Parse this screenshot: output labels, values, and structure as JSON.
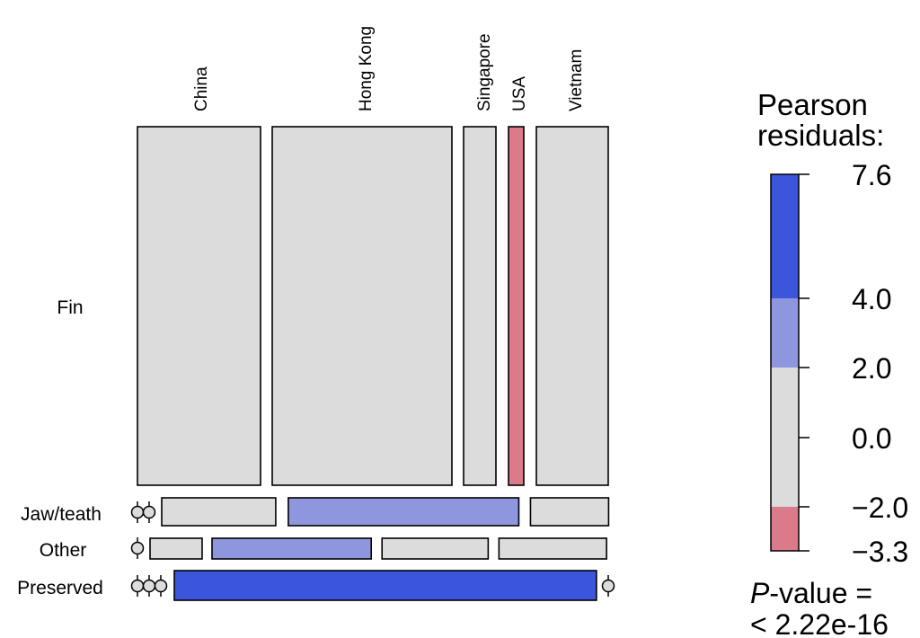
{
  "chart_data": {
    "type": "mosaic",
    "columns": [
      "China",
      "Hong Kong",
      "Singapore",
      "USA",
      "Vietnam"
    ],
    "rows": [
      "Fin",
      "Jaw/teath",
      "Other",
      "Preserved"
    ],
    "row_share": [
      0.79,
      0.065,
      0.05,
      0.065
    ],
    "cells": [
      [
        {
          "col": "China",
          "width": 0.25,
          "residual": 0.0
        },
        {
          "col": "Hong Kong",
          "width": 0.37,
          "residual": 0.0
        },
        {
          "col": "Singapore",
          "width": 0.067,
          "residual": 0.0
        },
        {
          "col": "USA",
          "width": 0.031,
          "residual": -2.5
        },
        {
          "col": "Vietnam",
          "width": 0.15,
          "residual": 0.0
        }
      ],
      [
        {
          "col": "China",
          "width": 0.0,
          "residual": 0.0
        },
        {
          "col": "Hong Kong",
          "width": 0.0,
          "residual": 0.0
        },
        {
          "col": "Singapore",
          "width": 0.232,
          "residual": 0.0
        },
        {
          "col": "USA",
          "width": 0.469,
          "residual": 3.0
        },
        {
          "col": "Vietnam",
          "width": 0.159,
          "residual": 0.0
        }
      ],
      [
        {
          "col": "China",
          "width": 0.0,
          "residual": 0.0
        },
        {
          "col": "Hong Kong",
          "width": 0.106,
          "residual": 0.0
        },
        {
          "col": "Singapore",
          "width": 0.324,
          "residual": 3.0
        },
        {
          "col": "USA",
          "width": 0.216,
          "residual": 0.0
        },
        {
          "col": "Vietnam",
          "width": 0.219,
          "residual": 0.0
        }
      ],
      [
        {
          "col": "China",
          "width": 0.0,
          "residual": 0.0
        },
        {
          "col": "Hong Kong",
          "width": 0.0,
          "residual": 0.0
        },
        {
          "col": "Singapore",
          "width": 0.0,
          "residual": 0.0
        },
        {
          "col": "USA",
          "width": 0.859,
          "residual": 7.6
        },
        {
          "col": "Vietnam",
          "width": 0.0,
          "residual": 0.0
        }
      ]
    ],
    "zero_cells": [
      {
        "row": "Jaw/teath",
        "count": 2
      },
      {
        "row": "Other",
        "count": 1
      },
      {
        "row": "Preserved",
        "count": 3
      },
      {
        "row": "Preserved",
        "count": 1,
        "position": "end"
      }
    ],
    "legend": {
      "title": "Pearson\nresiduals:",
      "ticks": [
        "7.6",
        "4.0",
        "2.0",
        "0.0",
        "−2.0",
        "−3.3"
      ],
      "values": [
        7.6,
        4.0,
        2.0,
        0.0,
        -2.0,
        -3.3
      ],
      "bands": [
        {
          "from": 4.0,
          "to": 7.6,
          "color": "#3b56dc"
        },
        {
          "from": 2.0,
          "to": 4.0,
          "color": "#8e96dd"
        },
        {
          "from": -2.0,
          "to": 2.0,
          "color": "#dcdcdc"
        },
        {
          "from": -3.3,
          "to": -2.0,
          "color": "#da7a8a"
        }
      ],
      "placement": "right"
    },
    "p_value_prefix": "P",
    "p_value_suffix": "-value =",
    "p_value": "< 2.22e-16"
  }
}
